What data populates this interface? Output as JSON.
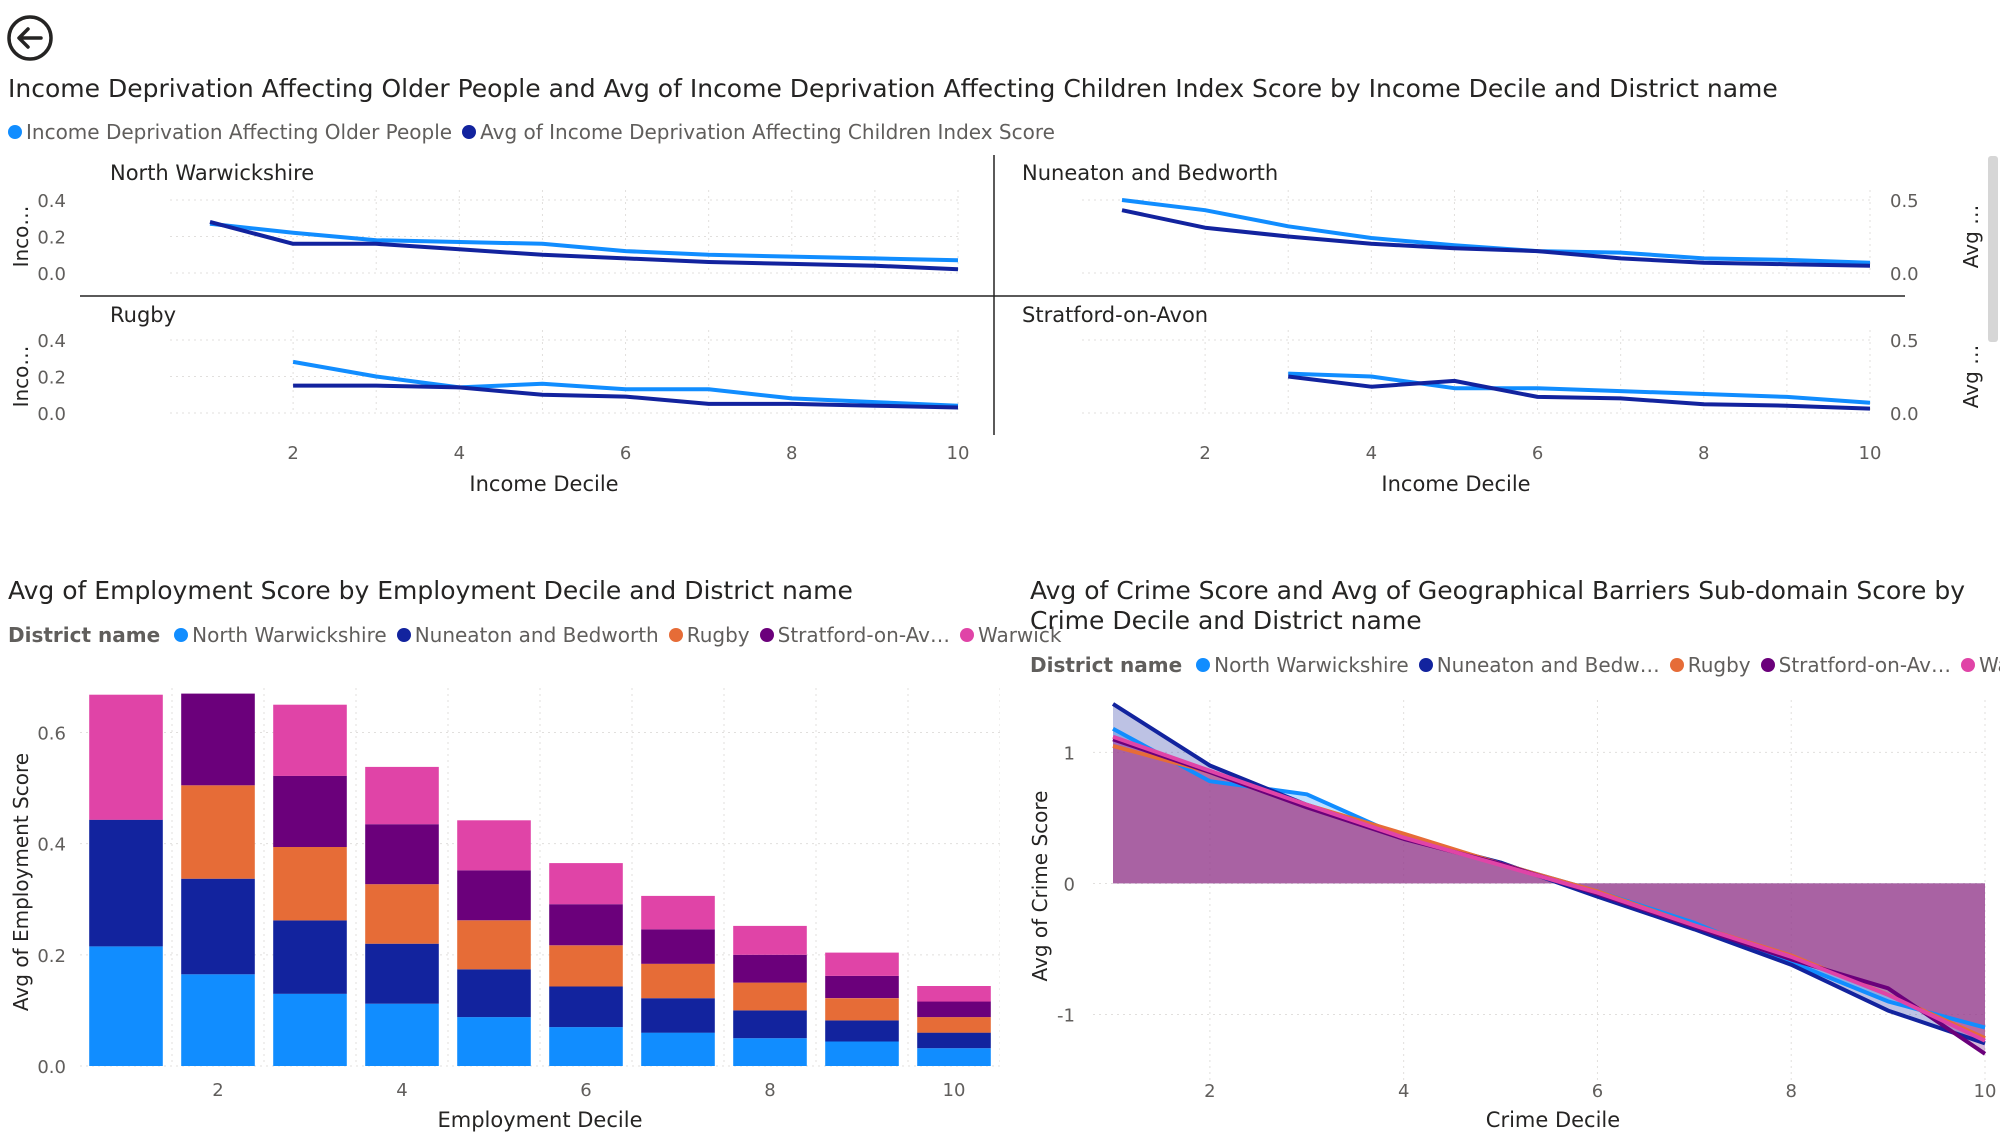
{
  "nav": {
    "back_icon": "back-arrow-icon"
  },
  "colors": {
    "older": "#118dff",
    "children": "#12239e",
    "North Warwickshire": "#118dff",
    "Nuneaton and Bedworth": "#12239e",
    "Rugby": "#e66c37",
    "Stratford-on-Avon": "#6b007b",
    "Warwick": "#e044a7"
  },
  "chart_data": [
    {
      "type": "line",
      "title": "Income Deprivation Affecting Older People and Avg of Income Deprivation Affecting Children Index Score by Income Decile and District name",
      "legend": [
        "Income Deprivation Affecting Older People",
        "Avg of Income Deprivation Affecting Children Index Score"
      ],
      "legend_position": "top-left",
      "xlabel": "Income Decile",
      "ylabel_left": "Inco…",
      "ylabel_right": "Avg …",
      "x_ticks": [
        "2",
        "4",
        "6",
        "8",
        "10"
      ],
      "xlim": [
        1,
        10
      ],
      "left_y_ticks": [
        "0.0",
        "0.2",
        "0.4"
      ],
      "right_y_ticks": [
        "0.0",
        "0.5"
      ],
      "left_ylim": [
        0,
        0.4
      ],
      "right_ylim": [
        0,
        0.5
      ],
      "grid": true,
      "panels": [
        {
          "name": "North Warwickshire",
          "axis": "left",
          "series": [
            {
              "name": "Income Deprivation Affecting Older People",
              "x": [
                1,
                2,
                3,
                4,
                5,
                6,
                7,
                8,
                9,
                10
              ],
              "y": [
                0.27,
                0.22,
                0.18,
                0.17,
                0.16,
                0.12,
                0.1,
                0.09,
                0.08,
                0.07
              ]
            },
            {
              "name": "Avg of Income Deprivation Affecting Children Index Score",
              "x": [
                1,
                2,
                3,
                4,
                5,
                6,
                7,
                8,
                9,
                10
              ],
              "y": [
                0.28,
                0.16,
                0.16,
                0.13,
                0.1,
                0.08,
                0.06,
                0.05,
                0.04,
                0.02
              ]
            }
          ]
        },
        {
          "name": "Nuneaton and Bedworth",
          "axis": "right",
          "series": [
            {
              "name": "Income Deprivation Affecting Older People",
              "x": [
                1,
                2,
                3,
                4,
                5,
                6,
                7,
                8,
                9,
                10
              ],
              "y": [
                0.5,
                0.43,
                0.32,
                0.24,
                0.19,
                0.15,
                0.14,
                0.1,
                0.09,
                0.07
              ]
            },
            {
              "name": "Avg of Income Deprivation Affecting Children Index Score",
              "x": [
                1,
                2,
                3,
                4,
                5,
                6,
                7,
                8,
                9,
                10
              ],
              "y": [
                0.43,
                0.31,
                0.25,
                0.2,
                0.17,
                0.15,
                0.1,
                0.07,
                0.06,
                0.05
              ]
            }
          ]
        },
        {
          "name": "Rugby",
          "axis": "left",
          "series": [
            {
              "name": "Income Deprivation Affecting Older People",
              "x": [
                2,
                3,
                4,
                5,
                6,
                7,
                8,
                9,
                10
              ],
              "y": [
                0.28,
                0.2,
                0.14,
                0.16,
                0.13,
                0.13,
                0.08,
                0.06,
                0.04
              ]
            },
            {
              "name": "Avg of Income Deprivation Affecting Children Index Score",
              "x": [
                2,
                3,
                4,
                5,
                6,
                7,
                8,
                9,
                10
              ],
              "y": [
                0.15,
                0.15,
                0.14,
                0.1,
                0.09,
                0.05,
                0.05,
                0.04,
                0.03
              ]
            }
          ]
        },
        {
          "name": "Stratford-on-Avon",
          "axis": "right",
          "series": [
            {
              "name": "Income Deprivation Affecting Older People",
              "x": [
                3,
                4,
                5,
                6,
                7,
                8,
                9,
                10
              ],
              "y": [
                0.27,
                0.25,
                0.17,
                0.17,
                0.15,
                0.13,
                0.11,
                0.07
              ]
            },
            {
              "name": "Avg of Income Deprivation Affecting Children Index Score",
              "x": [
                3,
                4,
                5,
                6,
                7,
                8,
                9,
                10
              ],
              "y": [
                0.25,
                0.18,
                0.22,
                0.11,
                0.1,
                0.06,
                0.05,
                0.03
              ]
            }
          ]
        }
      ]
    },
    {
      "type": "bar",
      "stacked": true,
      "title": "Avg of Employment Score by Employment Decile and District name",
      "legend_title": "District name",
      "legend_position": "top-left",
      "xlabel": "Employment Decile",
      "ylabel": "Avg of Employment Score",
      "x_ticks": [
        "2",
        "4",
        "6",
        "8",
        "10"
      ],
      "y_ticks": [
        "0.0",
        "0.2",
        "0.4",
        "0.6"
      ],
      "ylim": [
        0,
        0.68
      ],
      "grid": true,
      "categories": [
        1,
        2,
        3,
        4,
        5,
        6,
        7,
        8,
        9,
        10
      ],
      "series": [
        {
          "name": "North Warwickshire",
          "values": [
            0.215,
            0.165,
            0.13,
            0.112,
            0.088,
            0.07,
            0.06,
            0.05,
            0.044,
            0.032
          ]
        },
        {
          "name": "Nuneaton and Bedworth",
          "values": [
            0.228,
            0.172,
            0.132,
            0.108,
            0.086,
            0.073,
            0.062,
            0.05,
            0.038,
            0.028
          ]
        },
        {
          "name": "Rugby",
          "values": [
            0,
            0.168,
            0.132,
            0.107,
            0.088,
            0.074,
            0.062,
            0.05,
            0.04,
            0.028
          ]
        },
        {
          "name": "Stratford-on-Av…",
          "values": [
            0,
            0.165,
            0.128,
            0.108,
            0.09,
            0.074,
            0.062,
            0.05,
            0.04,
            0.028
          ]
        },
        {
          "name": "Warwick",
          "values": [
            0.225,
            0,
            0.128,
            0.103,
            0.09,
            0.074,
            0.06,
            0.052,
            0.042,
            0.028
          ]
        }
      ]
    },
    {
      "type": "area",
      "title": "Avg of Crime Score and Avg of Geographical Barriers Sub-domain Score by Crime Decile and District name",
      "legend_title": "District name",
      "legend_position": "top-left",
      "xlabel": "Crime Decile",
      "ylabel": "Avg of Crime Score",
      "x_ticks": [
        "2",
        "4",
        "6",
        "8",
        "10"
      ],
      "y_ticks": [
        "1",
        "0",
        "-1"
      ],
      "xlim": [
        1,
        10
      ],
      "ylim": [
        -1.5,
        1.4
      ],
      "grid": true,
      "series": [
        {
          "name": "North Warwickshire",
          "x": [
            1,
            2,
            3,
            4,
            5,
            6,
            7,
            8,
            9,
            10
          ],
          "y": [
            1.18,
            0.78,
            0.68,
            0.35,
            0.15,
            -0.06,
            -0.3,
            -0.6,
            -0.9,
            -1.1
          ]
        },
        {
          "name": "Nuneaton and Bedw…",
          "x": [
            1,
            2,
            3,
            4,
            5,
            6,
            7,
            8,
            9,
            10
          ],
          "y": [
            1.37,
            0.9,
            0.6,
            0.35,
            0.16,
            -0.1,
            -0.35,
            -0.62,
            -0.97,
            -1.22
          ]
        },
        {
          "name": "Rugby",
          "x": [
            1,
            2,
            3,
            4,
            5,
            6,
            7,
            8,
            9,
            10
          ],
          "y": [
            1.05,
            0.85,
            0.6,
            0.38,
            0.15,
            -0.06,
            -0.32,
            -0.55,
            -0.85,
            -1.18
          ]
        },
        {
          "name": "Stratford-on-Av…",
          "x": [
            1,
            2,
            3,
            4,
            5,
            6,
            7,
            8,
            9,
            10
          ],
          "y": [
            1.1,
            0.85,
            0.58,
            0.34,
            0.15,
            -0.08,
            -0.33,
            -0.58,
            -0.8,
            -1.3
          ]
        },
        {
          "name": "Warwick",
          "x": [
            1,
            2,
            3,
            4,
            5,
            6,
            7,
            8,
            9,
            10
          ],
          "y": [
            1.12,
            0.86,
            0.6,
            0.35,
            0.14,
            -0.07,
            -0.32,
            -0.56,
            -0.85,
            -1.2
          ]
        }
      ]
    }
  ]
}
